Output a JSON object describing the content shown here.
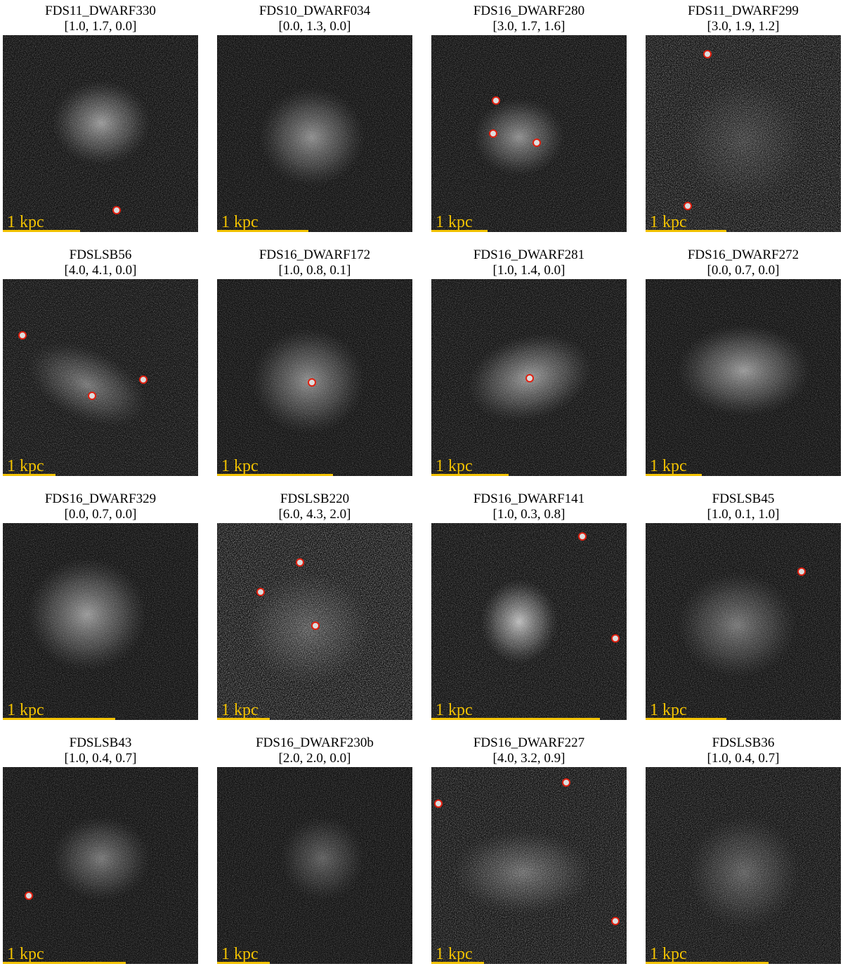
{
  "panels": [
    {
      "title": "FDS11_DWARF330",
      "params": "[1.0, 1.7, 0.0]",
      "scale": "1 kpc"
    },
    {
      "title": "FDS10_DWARF034",
      "params": "[0.0, 1.3, 0.0]",
      "scale": "1 kpc"
    },
    {
      "title": "FDS16_DWARF280",
      "params": "[3.0, 1.7, 1.6]",
      "scale": "1 kpc"
    },
    {
      "title": "FDS11_DWARF299",
      "params": "[3.0, 1.9, 1.2]",
      "scale": "1 kpc"
    },
    {
      "title": "FDSLSB56",
      "params": "[4.0, 4.1, 0.0]",
      "scale": "1 kpc"
    },
    {
      "title": "FDS16_DWARF172",
      "params": "[1.0, 0.8, 0.1]",
      "scale": "1 kpc"
    },
    {
      "title": "FDS16_DWARF281",
      "params": "[1.0, 1.4, 0.0]",
      "scale": "1 kpc"
    },
    {
      "title": "FDS16_DWARF272",
      "params": "[0.0, 0.7, 0.0]",
      "scale": "1 kpc"
    },
    {
      "title": "FDS16_DWARF329",
      "params": "[0.0, 0.7, 0.0]",
      "scale": "1 kpc"
    },
    {
      "title": "FDSLSB220",
      "params": "[6.0, 4.3, 2.0]",
      "scale": "1 kpc"
    },
    {
      "title": "FDS16_DWARF141",
      "params": "[1.0, 0.3, 0.8]",
      "scale": "1 kpc"
    },
    {
      "title": "FDSLSB45",
      "params": "[1.0, 0.1, 1.0]",
      "scale": "1 kpc"
    },
    {
      "title": "FDSLSB43",
      "params": "[1.0, 0.4, 0.7]",
      "scale": "1 kpc"
    },
    {
      "title": "FDS16_DWARF230b",
      "params": "[2.0, 2.0, 0.0]",
      "scale": "1 kpc"
    },
    {
      "title": "FDS16_DWARF227",
      "params": "[4.0, 3.2, 0.9]",
      "scale": "1 kpc"
    },
    {
      "title": "FDSLSB36",
      "params": "[1.0, 0.4, 0.7]",
      "scale": "1 kpc"
    }
  ]
}
